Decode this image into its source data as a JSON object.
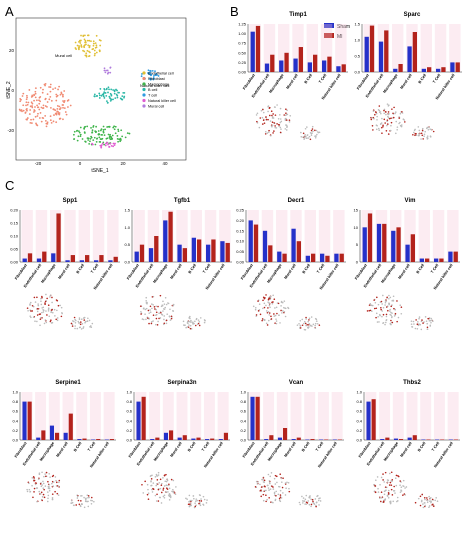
{
  "panel_labels": {
    "a": "A",
    "b": "B",
    "c": "C"
  },
  "tsne": {
    "xlabel": "tSNE_1",
    "ylabel": "tSNE_2",
    "xticks": [
      "-20",
      "0",
      "20",
      "40"
    ],
    "yticks": [
      "20",
      "0",
      "-20"
    ],
    "cluster_labels": [
      "Mural cell",
      "Natural killer cell"
    ],
    "legend": [
      {
        "name": "Endothelial cell",
        "color": "#e0bf35"
      },
      {
        "name": "Fibroblast",
        "color": "#f08a72"
      },
      {
        "name": "Macrophage",
        "color": "#3fb44b"
      },
      {
        "name": "B cell",
        "color": "#2bb7a6"
      },
      {
        "name": "T cell",
        "color": "#2f9be0"
      },
      {
        "name": "Natural killer cell",
        "color": "#e05bd0"
      },
      {
        "name": "Mural cell",
        "color": "#b07cdc"
      }
    ]
  },
  "sham_label": "Sham",
  "mi_label": "MI",
  "colors": {
    "sham": "#2531c9",
    "mi": "#b3231c",
    "shade": "#f6c8da"
  },
  "cell_types": [
    "Fibroblast",
    "Endothelial cell",
    "Macrophage",
    "Mural cell",
    "B Cell",
    "T Cell",
    "Natural killer cell"
  ],
  "chart_data": [
    {
      "type": "bar",
      "title": "Timp1",
      "ylim": [
        0,
        1.25
      ],
      "yticks": [
        "1.25",
        "1.00",
        "0.75",
        "0.50",
        "0.25",
        "0.00"
      ],
      "series": [
        {
          "name": "Sham",
          "values": [
            1.05,
            0.22,
            0.3,
            0.35,
            0.25,
            0.3,
            0.15
          ]
        },
        {
          "name": "MI",
          "values": [
            1.2,
            0.45,
            0.5,
            0.65,
            0.45,
            0.4,
            0.2
          ]
        }
      ]
    },
    {
      "type": "bar",
      "title": "Sparc",
      "ylim": [
        0,
        1.5
      ],
      "yticks": [
        "1.5",
        "1.0",
        "0.5",
        "0.0"
      ],
      "series": [
        {
          "name": "Sham",
          "values": [
            1.1,
            0.95,
            0.1,
            0.8,
            0.1,
            0.1,
            0.3
          ]
        },
        {
          "name": "MI",
          "values": [
            1.45,
            1.3,
            0.25,
            1.25,
            0.15,
            0.15,
            0.3
          ]
        }
      ]
    },
    {
      "type": "bar",
      "title": "Spp1",
      "ylim": [
        0,
        0.3
      ],
      "yticks": [
        "0.20",
        "0.15",
        "0.10",
        "0.05",
        "0.00"
      ],
      "series": [
        {
          "name": "Sham",
          "values": [
            0.02,
            0.02,
            0.05,
            0.01,
            0.01,
            0.01,
            0.01
          ]
        },
        {
          "name": "MI",
          "values": [
            0.05,
            0.06,
            0.28,
            0.04,
            0.04,
            0.04,
            0.03
          ]
        }
      ]
    },
    {
      "type": "bar",
      "title": "Tgfb1",
      "ylim": [
        0,
        1.5
      ],
      "yticks": [
        "1.5",
        "1.0",
        "0.5",
        "0.0"
      ],
      "series": [
        {
          "name": "Sham",
          "values": [
            0.3,
            0.4,
            1.2,
            0.5,
            0.7,
            0.5,
            0.6
          ]
        },
        {
          "name": "MI",
          "values": [
            0.5,
            0.75,
            1.45,
            0.4,
            0.65,
            0.65,
            0.55
          ]
        }
      ]
    },
    {
      "type": "bar",
      "title": "Decr1",
      "ylim": [
        0,
        0.25
      ],
      "yticks": [
        "0.25",
        "0.20",
        "0.15",
        "0.10",
        "0.05",
        "0.00"
      ],
      "series": [
        {
          "name": "Sham",
          "values": [
            0.2,
            0.15,
            0.05,
            0.16,
            0.03,
            0.04,
            0.04
          ]
        },
        {
          "name": "MI",
          "values": [
            0.18,
            0.08,
            0.04,
            0.1,
            0.04,
            0.03,
            0.04
          ]
        }
      ]
    },
    {
      "type": "bar",
      "title": "Vim",
      "ylim": [
        0,
        15
      ],
      "yticks": [
        "15",
        "10",
        "5",
        "0"
      ],
      "series": [
        {
          "name": "Sham",
          "values": [
            10,
            11,
            9,
            5,
            1,
            1,
            3
          ]
        },
        {
          "name": "MI",
          "values": [
            14,
            11,
            10,
            8,
            1,
            1,
            3
          ]
        }
      ]
    },
    {
      "type": "bar",
      "title": "Serpine1",
      "ylim": [
        0,
        1.0
      ],
      "yticks": [
        "1.0",
        "0.8",
        "0.6",
        "0.4",
        "0.2",
        "0.0"
      ],
      "series": [
        {
          "name": "Sham",
          "values": [
            0.8,
            0.05,
            0.3,
            0.15,
            0.02,
            0.01,
            0.01
          ]
        },
        {
          "name": "MI",
          "values": [
            0.8,
            0.2,
            0.15,
            0.55,
            0.03,
            0.02,
            0.02
          ]
        }
      ]
    },
    {
      "type": "bar",
      "title": "Serpina3n",
      "ylim": [
        0,
        1.0
      ],
      "yticks": [
        "1.0",
        "0.8",
        "0.6",
        "0.4",
        "0.2",
        "0.0"
      ],
      "series": [
        {
          "name": "Sham",
          "values": [
            0.8,
            0.02,
            0.15,
            0.05,
            0.03,
            0.02,
            0.02
          ]
        },
        {
          "name": "MI",
          "values": [
            0.9,
            0.05,
            0.2,
            0.1,
            0.05,
            0.03,
            0.15
          ]
        }
      ]
    },
    {
      "type": "bar",
      "title": "Vcan",
      "ylim": [
        0,
        1.0
      ],
      "yticks": [
        "1.0",
        "0.8",
        "0.6",
        "0.4",
        "0.2",
        "0.0"
      ],
      "series": [
        {
          "name": "Sham",
          "values": [
            0.9,
            0.02,
            0.05,
            0.02,
            0.01,
            0.01,
            0.01
          ]
        },
        {
          "name": "MI",
          "values": [
            0.9,
            0.1,
            0.25,
            0.05,
            0.02,
            0.01,
            0.01
          ]
        }
      ]
    },
    {
      "type": "bar",
      "title": "Thbs2",
      "ylim": [
        0,
        1.0
      ],
      "yticks": [
        "1.0",
        "0.8",
        "0.6",
        "0.4",
        "0.2",
        "0.0"
      ],
      "series": [
        {
          "name": "Sham",
          "values": [
            0.8,
            0.02,
            0.03,
            0.05,
            0.01,
            0.01,
            0.01
          ]
        },
        {
          "name": "MI",
          "values": [
            0.85,
            0.05,
            0.02,
            0.1,
            0.01,
            0.01,
            0.01
          ]
        }
      ]
    }
  ]
}
